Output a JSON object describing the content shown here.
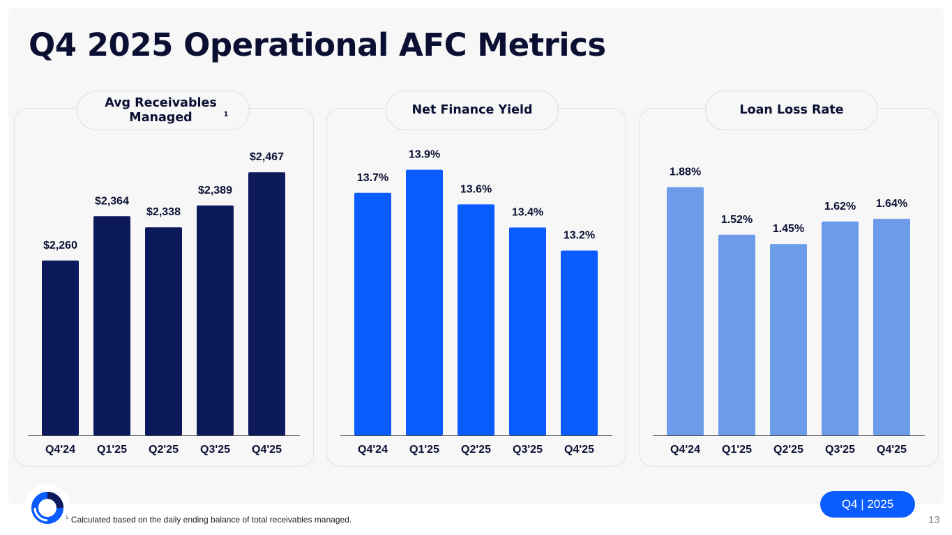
{
  "title": "Q4 2025 Operational AFC Metrics",
  "panels": [
    {
      "heading": "Avg Receivables Managed",
      "superscript": "1"
    },
    {
      "heading": "Net Finance Yield"
    },
    {
      "heading": "Loan Loss Rate"
    }
  ],
  "chart_data": [
    {
      "type": "bar",
      "title": "Avg Receivables Managed",
      "categories": [
        "Q4'24",
        "Q1'25",
        "Q2'25",
        "Q3'25",
        "Q4'25"
      ],
      "values": [
        2260,
        2364,
        2338,
        2389,
        2467
      ],
      "labels": [
        "$2,260",
        "$2,364",
        "$2,338",
        "$2,389",
        "$2,467"
      ],
      "ylim": [
        1850,
        2500
      ],
      "color": "#0c1a5c"
    },
    {
      "type": "bar",
      "title": "Net Finance Yield",
      "categories": [
        "Q4'24",
        "Q1'25",
        "Q2'25",
        "Q3'25",
        "Q4'25"
      ],
      "values": [
        13.7,
        13.9,
        13.6,
        13.4,
        13.2
      ],
      "labels": [
        "13.7%",
        "13.9%",
        "13.6%",
        "13.4%",
        "13.2%"
      ],
      "ylim": [
        11.6,
        14.0
      ],
      "color": "#0a5cff"
    },
    {
      "type": "bar",
      "title": "Loan Loss Rate",
      "categories": [
        "Q4'24",
        "Q1'25",
        "Q2'25",
        "Q3'25",
        "Q4'25"
      ],
      "values": [
        1.88,
        1.52,
        1.45,
        1.62,
        1.64
      ],
      "labels": [
        "1.88%",
        "1.52%",
        "1.45%",
        "1.62%",
        "1.64%"
      ],
      "ylim": [
        0,
        2.1
      ],
      "color": "#6b9be9"
    }
  ],
  "footnote": {
    "marker": "1",
    "text": "Calculated based on the daily ending balance of total receivables managed."
  },
  "badge": "Q4 | 2025",
  "page_number": "13",
  "logo": "circle-logo-icon"
}
